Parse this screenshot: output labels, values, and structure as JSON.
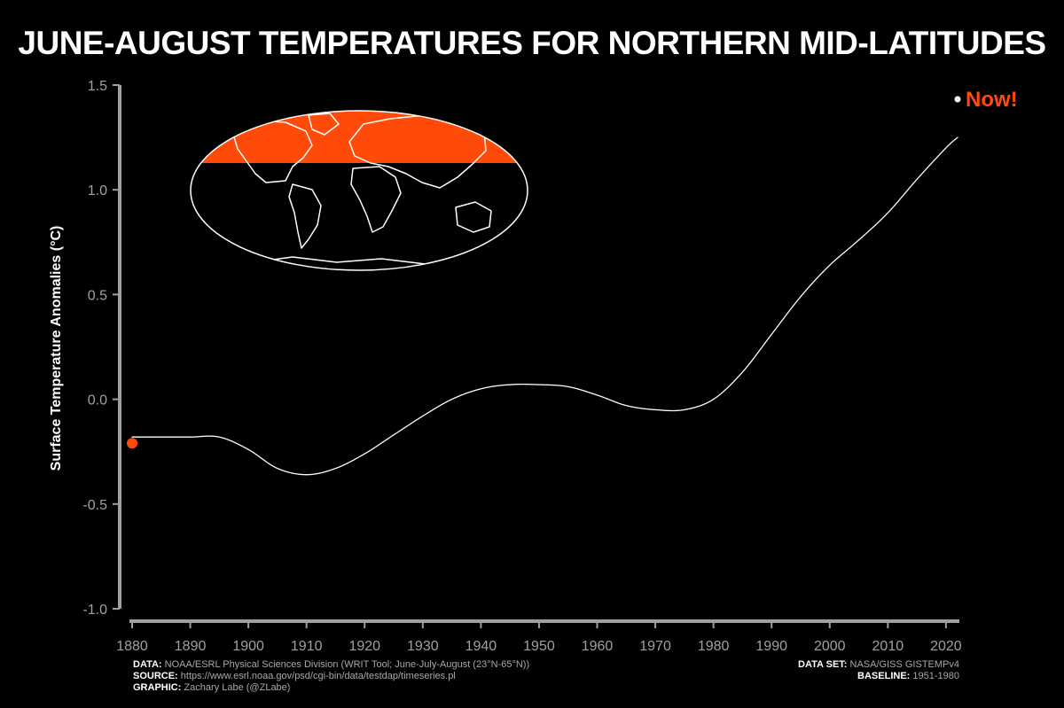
{
  "title": "JUNE-AUGUST TEMPERATURES FOR NORTHERN MID-LATITUDES",
  "colors": {
    "background": "#000000",
    "accent": "#ff4a0a",
    "line": "#ffffff",
    "axis": "#a0a0a0"
  },
  "chart_data": {
    "type": "line",
    "title": "JUNE-AUGUST TEMPERATURES FOR NORTHERN MID-LATITUDES",
    "xlabel": "",
    "ylabel": "Surface Temperature Anomalies (°C)",
    "xlim": [
      1880,
      2022
    ],
    "ylim": [
      -1.0,
      1.5
    ],
    "xticks": [
      "1880",
      "1890",
      "1900",
      "1910",
      "1920",
      "1930",
      "1940",
      "1950",
      "1960",
      "1970",
      "1980",
      "1990",
      "2000",
      "2010",
      "2020"
    ],
    "yticks": [
      "-1.0",
      "-0.5",
      "0.0",
      "0.5",
      "1.0",
      "1.5"
    ],
    "grid": false,
    "series": [
      {
        "x": [
          1880,
          1885,
          1890,
          1895,
          1900,
          1905,
          1910,
          1915,
          1920,
          1925,
          1930,
          1935,
          1940,
          1945,
          1950,
          1955,
          1960,
          1965,
          1970,
          1975,
          1980,
          1985,
          1990,
          1995,
          2000,
          2005,
          2010,
          2015,
          2020,
          2022
        ],
        "values": [
          -0.18,
          -0.18,
          -0.18,
          -0.18,
          -0.24,
          -0.33,
          -0.36,
          -0.33,
          -0.26,
          -0.17,
          -0.08,
          0.0,
          0.05,
          0.07,
          0.07,
          0.06,
          0.02,
          -0.03,
          -0.05,
          -0.05,
          0.0,
          0.13,
          0.31,
          0.49,
          0.64,
          0.76,
          0.89,
          1.05,
          1.2,
          1.25
        ]
      }
    ],
    "highlight_point": {
      "x": 1880,
      "y": -0.21
    },
    "annotation": "Now!",
    "inset_map": {
      "type": "world map",
      "highlight_band": "23°N-65°N"
    }
  },
  "footer": {
    "data_label": "DATA:",
    "data_value": "NOAA/ESRL Physical Sciences Division (WRIT Tool; June-July-August (23°N-65°N))",
    "source_label": "SOURCE:",
    "source_value": "https://www.esrl.noaa.gov/psd/cgi-bin/data/testdap/timeseries.pl",
    "graphic_label": "GRAPHIC:",
    "graphic_value": "Zachary Labe (@ZLabe)",
    "dataset_label": "DATA SET:",
    "dataset_value": "NASA/GISS GISTEMPv4",
    "baseline_label": "BASELINE:",
    "baseline_value": "1951-1980"
  }
}
